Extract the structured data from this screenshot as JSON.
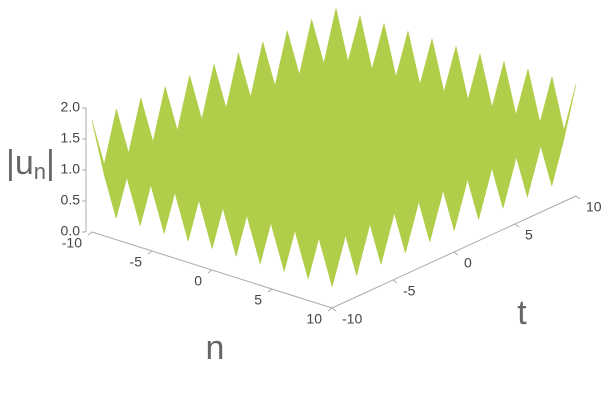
{
  "chart_data": {
    "type": "surface",
    "xlabel": "n",
    "ylabel": "t",
    "zlabel": {
      "main": "|u",
      "sub": "n",
      "close": "|"
    },
    "x": [
      -10,
      -9,
      -8,
      -7,
      -6,
      -5,
      -4,
      -3,
      -2,
      -1,
      0,
      1,
      2,
      3,
      4,
      5,
      6,
      7,
      8,
      9,
      10
    ],
    "y": [
      -10,
      -9,
      -8,
      -7,
      -6,
      -5,
      -4,
      -3,
      -2,
      -1,
      0,
      1,
      2,
      3,
      4,
      5,
      6,
      7,
      8,
      9,
      10
    ],
    "z": [
      [
        1.8,
        1.0,
        1.8,
        1.0,
        1.8,
        1.0,
        1.8,
        1.0,
        1.8,
        1.0,
        1.8,
        1.0,
        1.8,
        1.0,
        1.8,
        1.0,
        1.8,
        1.0,
        1.8,
        1.0,
        1.8
      ],
      [
        1.0,
        0.2,
        1.0,
        0.2,
        1.0,
        0.2,
        1.0,
        0.2,
        1.0,
        0.2,
        1.0,
        0.2,
        1.0,
        0.2,
        1.0,
        0.2,
        1.0,
        0.2,
        1.0,
        0.2,
        1.0
      ],
      [
        1.8,
        1.0,
        1.8,
        1.0,
        1.8,
        1.0,
        1.8,
        1.0,
        1.8,
        1.0,
        1.8,
        1.0,
        1.8,
        1.0,
        1.8,
        1.0,
        1.8,
        1.0,
        1.8,
        1.0,
        1.8
      ],
      [
        1.0,
        0.2,
        1.0,
        0.2,
        1.0,
        0.2,
        1.0,
        0.2,
        1.0,
        0.2,
        1.0,
        0.2,
        1.0,
        0.2,
        1.0,
        0.2,
        1.0,
        0.2,
        1.0,
        0.2,
        1.0
      ],
      [
        1.8,
        1.0,
        1.8,
        1.0,
        1.8,
        1.0,
        1.8,
        1.0,
        1.8,
        1.0,
        1.8,
        1.0,
        1.8,
        1.0,
        1.8,
        1.0,
        1.8,
        1.0,
        1.8,
        1.0,
        1.8
      ],
      [
        1.0,
        0.2,
        1.0,
        0.2,
        1.0,
        0.2,
        1.0,
        0.2,
        1.0,
        0.2,
        1.0,
        0.2,
        1.0,
        0.2,
        1.0,
        0.2,
        1.0,
        0.2,
        1.0,
        0.2,
        1.0
      ],
      [
        1.8,
        1.0,
        1.8,
        1.0,
        1.8,
        1.0,
        1.8,
        1.0,
        1.8,
        1.0,
        1.8,
        1.0,
        1.8,
        1.0,
        1.8,
        1.0,
        1.8,
        1.0,
        1.8,
        1.0,
        1.8
      ],
      [
        1.0,
        0.2,
        1.0,
        0.2,
        1.0,
        0.2,
        1.0,
        0.2,
        1.0,
        0.2,
        1.0,
        0.2,
        1.0,
        0.2,
        1.0,
        0.2,
        1.0,
        0.2,
        1.0,
        0.2,
        1.0
      ],
      [
        1.8,
        1.0,
        1.8,
        1.0,
        1.8,
        1.0,
        1.8,
        1.0,
        1.8,
        1.0,
        1.8,
        1.0,
        1.8,
        1.0,
        1.8,
        1.0,
        1.8,
        1.0,
        1.8,
        1.0,
        1.8
      ],
      [
        1.0,
        0.2,
        1.0,
        0.2,
        1.0,
        0.2,
        1.0,
        0.2,
        1.0,
        0.2,
        1.0,
        0.2,
        1.0,
        0.2,
        1.0,
        0.2,
        1.0,
        0.2,
        1.0,
        0.2,
        1.0
      ],
      [
        1.8,
        1.0,
        1.8,
        1.0,
        1.8,
        1.0,
        1.8,
        1.0,
        1.8,
        1.0,
        1.8,
        1.0,
        1.8,
        1.0,
        1.8,
        1.0,
        1.8,
        1.0,
        1.8,
        1.0,
        1.8
      ],
      [
        1.0,
        0.2,
        1.0,
        0.2,
        1.0,
        0.2,
        1.0,
        0.2,
        1.0,
        0.2,
        1.0,
        0.2,
        1.0,
        0.2,
        1.0,
        0.2,
        1.0,
        0.2,
        1.0,
        0.2,
        1.0
      ],
      [
        1.8,
        1.0,
        1.8,
        1.0,
        1.8,
        1.0,
        1.8,
        1.0,
        1.8,
        1.0,
        1.8,
        1.0,
        1.8,
        1.0,
        1.8,
        1.0,
        1.8,
        1.0,
        1.8,
        1.0,
        1.8
      ],
      [
        1.0,
        0.2,
        1.0,
        0.2,
        1.0,
        0.2,
        1.0,
        0.2,
        1.0,
        0.2,
        1.0,
        0.2,
        1.0,
        0.2,
        1.0,
        0.2,
        1.0,
        0.2,
        1.0,
        0.2,
        1.0
      ],
      [
        1.8,
        1.0,
        1.8,
        1.0,
        1.8,
        1.0,
        1.8,
        1.0,
        1.8,
        1.0,
        1.8,
        1.0,
        1.8,
        1.0,
        1.8,
        1.0,
        1.8,
        1.0,
        1.8,
        1.0,
        1.8
      ],
      [
        1.0,
        0.2,
        1.0,
        0.2,
        1.0,
        0.2,
        1.0,
        0.2,
        1.0,
        0.2,
        1.0,
        0.2,
        1.0,
        0.2,
        1.0,
        0.2,
        1.0,
        0.2,
        1.0,
        0.2,
        1.0
      ],
      [
        1.8,
        1.0,
        1.8,
        1.0,
        1.8,
        1.0,
        1.8,
        1.0,
        1.8,
        1.0,
        1.8,
        1.0,
        1.8,
        1.0,
        1.8,
        1.0,
        1.8,
        1.0,
        1.8,
        1.0,
        1.8
      ],
      [
        1.0,
        0.2,
        1.0,
        0.2,
        1.0,
        0.2,
        1.0,
        0.2,
        1.0,
        0.2,
        1.0,
        0.2,
        1.0,
        0.2,
        1.0,
        0.2,
        1.0,
        0.2,
        1.0,
        0.2,
        1.0
      ],
      [
        1.8,
        1.0,
        1.8,
        1.0,
        1.8,
        1.0,
        1.8,
        1.0,
        1.8,
        1.0,
        1.8,
        1.0,
        1.8,
        1.0,
        1.8,
        1.0,
        1.8,
        1.0,
        1.8,
        1.0,
        1.8
      ],
      [
        1.0,
        0.2,
        1.0,
        0.2,
        1.0,
        0.2,
        1.0,
        0.2,
        1.0,
        0.2,
        1.0,
        0.2,
        1.0,
        0.2,
        1.0,
        0.2,
        1.0,
        0.2,
        1.0,
        0.2,
        1.0
      ],
      [
        1.8,
        1.0,
        1.8,
        1.0,
        1.8,
        1.0,
        1.8,
        1.0,
        1.8,
        1.0,
        1.8,
        1.0,
        1.8,
        1.0,
        1.8,
        1.0,
        1.8,
        1.0,
        1.8,
        1.0,
        1.8
      ]
    ],
    "xlim": [
      -10,
      10
    ],
    "ylim": [
      -10,
      10
    ],
    "zlim": [
      0,
      2
    ],
    "xticks": [
      -10,
      -5,
      0,
      5,
      10
    ],
    "yticks": [
      -10,
      -5,
      0,
      5,
      10
    ],
    "zticks": [
      {
        "value": 0,
        "label": "0.0"
      },
      0.5,
      {
        "value": 1,
        "label": "1.0"
      },
      1.5,
      {
        "value": 2,
        "label": "2.0"
      }
    ],
    "colors": [
      "#3f62c8",
      "#7cc24a",
      "#e6d94a",
      "#d93b3b"
    ]
  }
}
